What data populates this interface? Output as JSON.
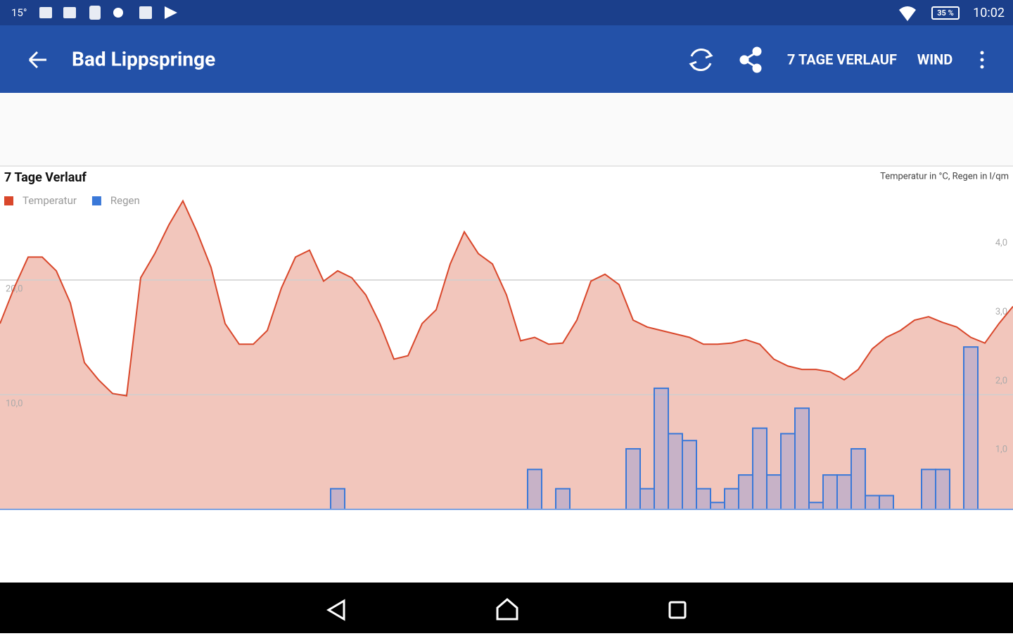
{
  "status_bar": {
    "temperature": "15°",
    "battery": "35 %",
    "time": "10:02"
  },
  "app_bar": {
    "title": "Bad Lippspringe",
    "actions": [
      "7 TAGE VERLAUF",
      "WIND"
    ]
  },
  "chart_data": {
    "type": "area",
    "title": "7 Tage Verlauf",
    "subtitle": "Temperatur in °C, Regen in l/qm",
    "series": [
      {
        "name": "Temperatur",
        "color": "#d9472b",
        "fill": "#f2c6bc",
        "values": [
          16.2,
          19.3,
          22.0,
          22.0,
          20.8,
          18.0,
          12.8,
          11.3,
          10.1,
          9.9,
          20.2,
          22.3,
          24.8,
          26.9,
          24.2,
          21.1,
          16.2,
          14.4,
          14.4,
          15.6,
          19.3,
          22.0,
          22.6,
          19.9,
          20.8,
          20.2,
          18.7,
          16.2,
          13.1,
          13.4,
          16.2,
          17.4,
          21.4,
          24.2,
          22.3,
          21.4,
          18.7,
          14.7,
          15.0,
          14.4,
          14.5,
          16.5,
          19.9,
          20.5,
          19.6,
          16.5,
          15.9,
          15.6,
          15.3,
          15.0,
          14.4,
          14.4,
          14.5,
          14.8,
          14.4,
          13.1,
          12.5,
          12.2,
          12.2,
          12.0,
          11.3,
          12.2,
          14.0,
          15.0,
          15.6,
          16.5,
          16.8,
          16.3,
          15.9,
          15.0,
          14.5,
          16.2,
          17.7
        ]
      },
      {
        "name": "Regen",
        "color": "#3a78d8",
        "axis": "y2",
        "values": [
          0,
          0,
          0,
          0,
          0,
          0,
          0,
          0,
          0,
          0,
          0,
          0,
          0,
          0,
          0,
          0,
          0,
          0,
          0,
          0,
          0,
          0,
          0,
          0,
          0.3,
          0,
          0,
          0,
          0,
          0,
          0,
          0,
          0,
          0,
          0,
          0,
          0,
          0,
          0.58,
          0,
          0.3,
          0,
          0,
          0,
          0,
          0.88,
          0.3,
          1.76,
          1.1,
          1.0,
          0.3,
          0.1,
          0.3,
          0.5,
          1.18,
          0.5,
          1.1,
          1.47,
          0.1,
          0.5,
          0.5,
          0.88,
          0.2,
          0.2,
          0,
          0,
          0.58,
          0.58,
          0,
          2.36,
          0,
          0,
          0
        ]
      }
    ],
    "ylim": [
      0,
      30
    ],
    "yticks": [
      {
        "value": 10,
        "label": "10,0"
      },
      {
        "value": 20,
        "label": "20,0"
      }
    ],
    "y2lim": [
      0,
      5
    ],
    "y2ticks": [
      {
        "value": 1,
        "label": "1,0"
      },
      {
        "value": 2,
        "label": "2,0"
      },
      {
        "value": 3,
        "label": "3,0"
      },
      {
        "value": 4,
        "label": "4,0"
      }
    ],
    "grid": true,
    "legend": "top-left"
  }
}
